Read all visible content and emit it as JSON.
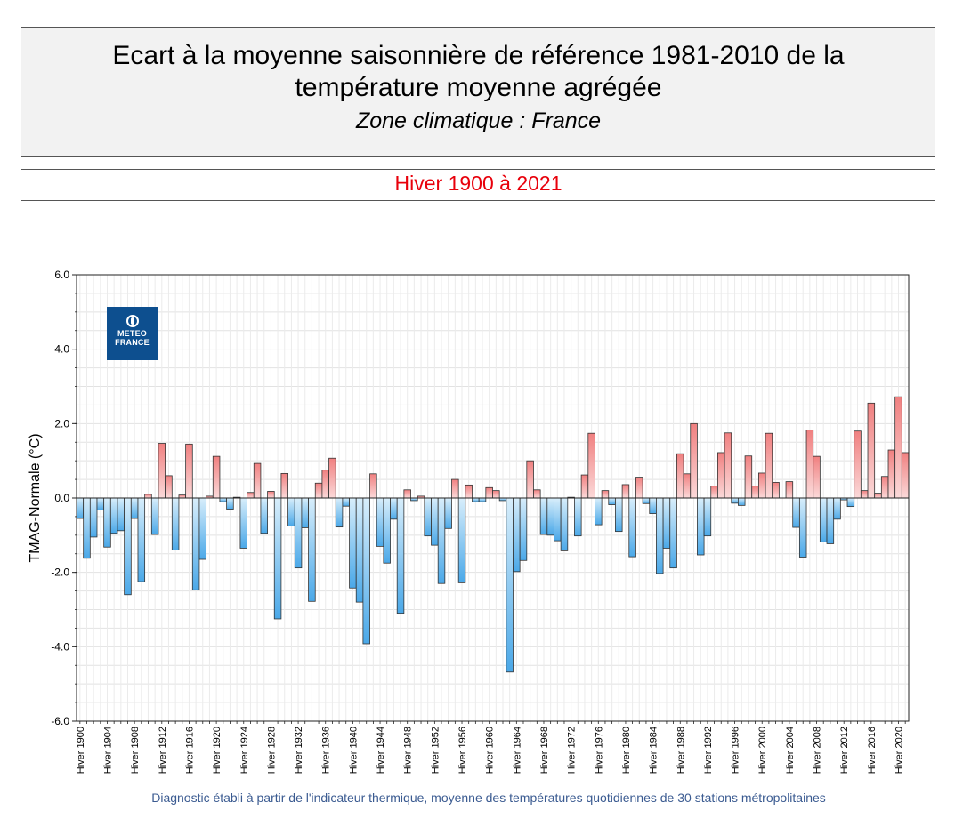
{
  "header": {
    "title_line1": "Ecart à la moyenne saisonnière  de référence 1981-2010  de la",
    "title_line2": "température moyenne  agrégée",
    "subtitle": "Zone climatique : France",
    "period": "Hiver 1900 à 2021"
  },
  "logo": {
    "line1": "METEO",
    "line2": "FRANCE"
  },
  "footnote": "Diagnostic établi à partir de l'indicateur thermique, moyenne des températures quotidiennes de 30 stations métropolitaines",
  "colors": {
    "warm": "#f08080",
    "cold": "#4aa8e8",
    "period_text": "#e8000b",
    "logo_bg": "#0d4f8f"
  },
  "chart_data": {
    "type": "bar",
    "ylabel": "TMAG-Normale (°C)",
    "ylim": [
      -6,
      6
    ],
    "y_ticks": [
      "-6.0",
      "-4.0",
      "-2.0",
      "0.0",
      "2.0",
      "4.0",
      "6.0"
    ],
    "x_tick_every": 4,
    "categories": [
      "Hiver 1900",
      "Hiver 1901",
      "Hiver 1902",
      "Hiver 1903",
      "Hiver 1904",
      "Hiver 1905",
      "Hiver 1906",
      "Hiver 1907",
      "Hiver 1908",
      "Hiver 1909",
      "Hiver 1910",
      "Hiver 1911",
      "Hiver 1912",
      "Hiver 1913",
      "Hiver 1914",
      "Hiver 1915",
      "Hiver 1916",
      "Hiver 1917",
      "Hiver 1918",
      "Hiver 1919",
      "Hiver 1920",
      "Hiver 1921",
      "Hiver 1922",
      "Hiver 1923",
      "Hiver 1924",
      "Hiver 1925",
      "Hiver 1926",
      "Hiver 1927",
      "Hiver 1928",
      "Hiver 1929",
      "Hiver 1930",
      "Hiver 1931",
      "Hiver 1932",
      "Hiver 1933",
      "Hiver 1934",
      "Hiver 1935",
      "Hiver 1936",
      "Hiver 1937",
      "Hiver 1938",
      "Hiver 1939",
      "Hiver 1940",
      "Hiver 1941",
      "Hiver 1942",
      "Hiver 1943",
      "Hiver 1944",
      "Hiver 1945",
      "Hiver 1946",
      "Hiver 1947",
      "Hiver 1948",
      "Hiver 1949",
      "Hiver 1950",
      "Hiver 1951",
      "Hiver 1952",
      "Hiver 1953",
      "Hiver 1954",
      "Hiver 1955",
      "Hiver 1956",
      "Hiver 1957",
      "Hiver 1958",
      "Hiver 1959",
      "Hiver 1960",
      "Hiver 1961",
      "Hiver 1962",
      "Hiver 1963",
      "Hiver 1964",
      "Hiver 1965",
      "Hiver 1966",
      "Hiver 1967",
      "Hiver 1968",
      "Hiver 1969",
      "Hiver 1970",
      "Hiver 1971",
      "Hiver 1972",
      "Hiver 1973",
      "Hiver 1974",
      "Hiver 1975",
      "Hiver 1976",
      "Hiver 1977",
      "Hiver 1978",
      "Hiver 1979",
      "Hiver 1980",
      "Hiver 1981",
      "Hiver 1982",
      "Hiver 1983",
      "Hiver 1984",
      "Hiver 1985",
      "Hiver 1986",
      "Hiver 1987",
      "Hiver 1988",
      "Hiver 1989",
      "Hiver 1990",
      "Hiver 1991",
      "Hiver 1992",
      "Hiver 1993",
      "Hiver 1994",
      "Hiver 1995",
      "Hiver 1996",
      "Hiver 1997",
      "Hiver 1998",
      "Hiver 1999",
      "Hiver 2000",
      "Hiver 2001",
      "Hiver 2002",
      "Hiver 2003",
      "Hiver 2004",
      "Hiver 2005",
      "Hiver 2006",
      "Hiver 2007",
      "Hiver 2008",
      "Hiver 2009",
      "Hiver 2010",
      "Hiver 2011",
      "Hiver 2012",
      "Hiver 2013",
      "Hiver 2014",
      "Hiver 2015",
      "Hiver 2016",
      "Hiver 2017",
      "Hiver 2018",
      "Hiver 2019",
      "Hiver 2020",
      "Hiver 2021"
    ],
    "values": [
      -0.55,
      -1.62,
      -1.05,
      -0.32,
      -1.32,
      -0.95,
      -0.88,
      -2.6,
      -0.55,
      -2.25,
      0.1,
      -0.98,
      1.47,
      0.6,
      -1.4,
      0.08,
      1.45,
      -2.47,
      -1.65,
      0.05,
      1.12,
      -0.1,
      -0.3,
      0.02,
      -1.35,
      0.15,
      0.93,
      -0.95,
      0.18,
      -3.25,
      0.66,
      -0.75,
      -1.88,
      -0.8,
      -2.78,
      0.4,
      0.75,
      1.07,
      -0.78,
      -0.22,
      -2.42,
      -2.8,
      -3.92,
      0.65,
      -1.3,
      -1.75,
      -0.57,
      -3.1,
      0.22,
      -0.07,
      0.05,
      -1.02,
      -1.27,
      -2.3,
      -0.82,
      0.5,
      -2.28,
      0.35,
      -0.1,
      -0.1,
      0.28,
      0.2,
      -0.07,
      -4.68,
      -1.98,
      -1.68,
      1.0,
      0.22,
      -0.98,
      -1.0,
      -1.15,
      -1.42,
      0.02,
      -1.02,
      0.62,
      1.74,
      -0.72,
      0.2,
      -0.18,
      -0.9,
      0.36,
      -1.58,
      0.56,
      -0.15,
      -0.42,
      -2.03,
      -1.35,
      -1.88,
      1.19,
      0.65,
      2.0,
      -1.53,
      -1.02,
      0.32,
      1.22,
      1.75,
      -0.14,
      -0.2,
      1.13,
      0.32,
      0.67,
      1.74,
      0.42,
      0.0,
      0.44,
      -0.79,
      -1.59,
      1.83,
      1.12,
      -1.18,
      -1.23,
      -0.57,
      -0.05,
      -0.23,
      1.8,
      0.2,
      2.55,
      0.13,
      0.58,
      1.29,
      2.72,
      1.22
    ]
  }
}
